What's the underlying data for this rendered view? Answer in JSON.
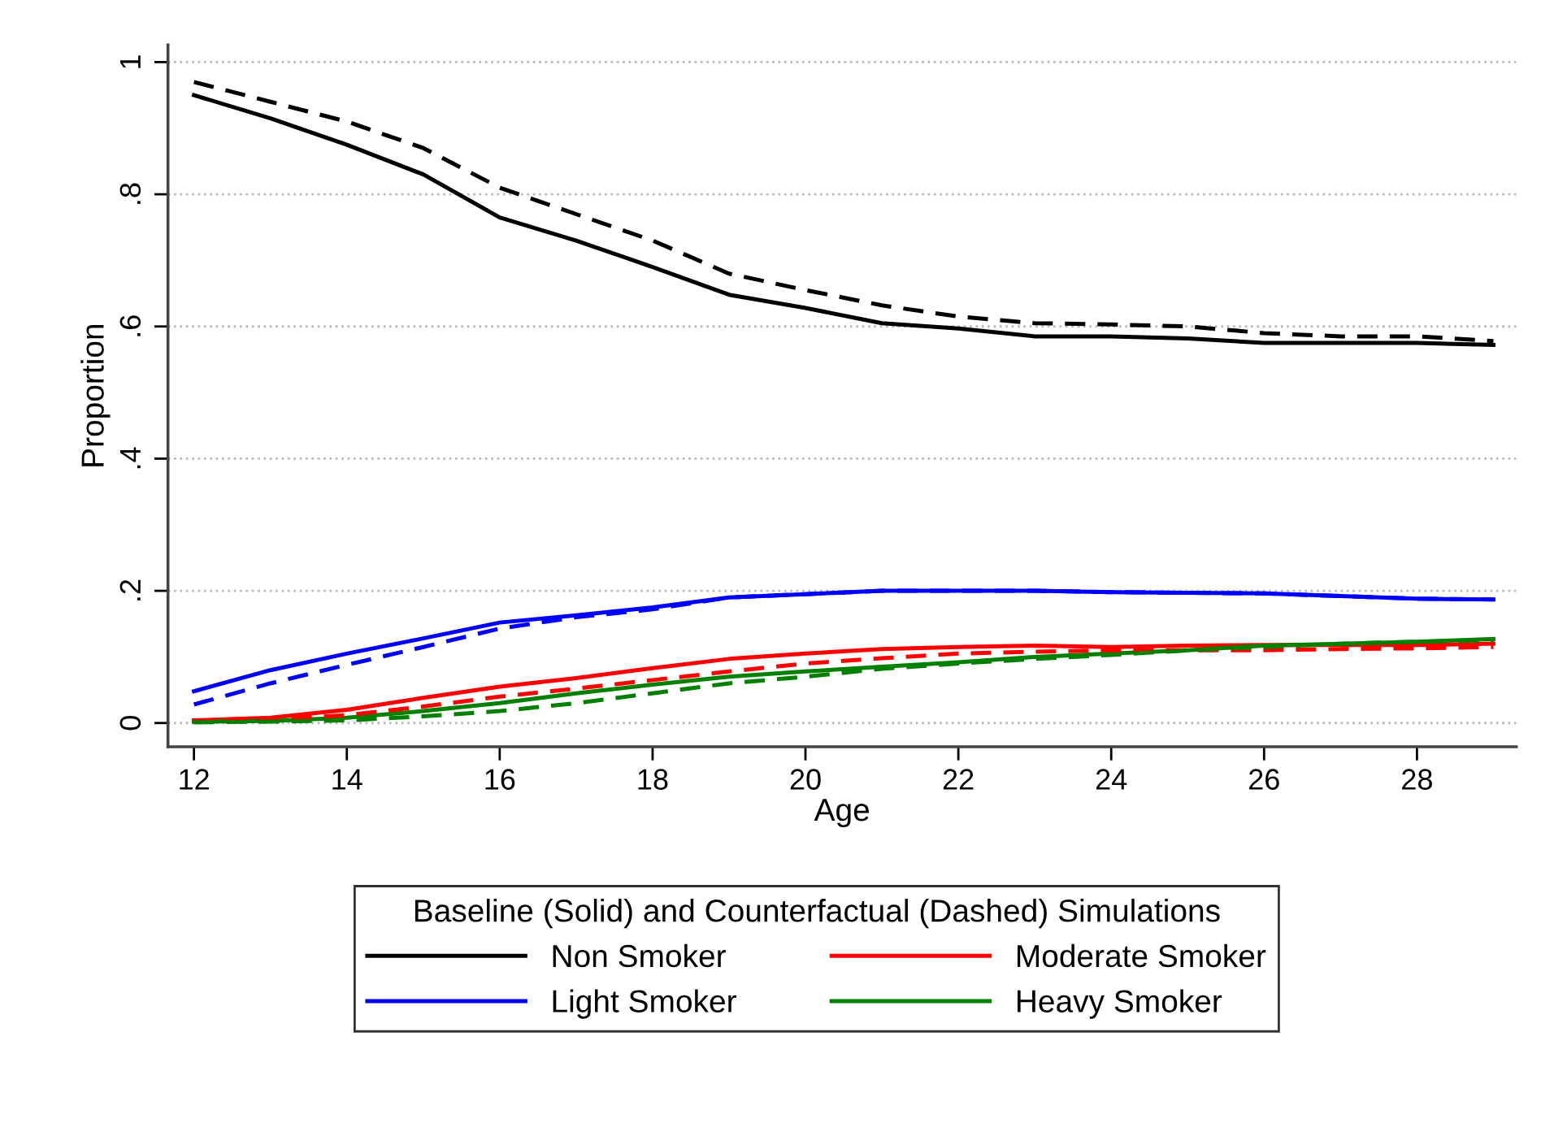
{
  "chart_data": {
    "type": "line",
    "xlabel": "Age",
    "ylabel": "Proportion",
    "legend_title": "Baseline (Solid) and Counterfactual (Dashed) Simulations",
    "x": [
      12,
      13,
      14,
      15,
      16,
      17,
      18,
      19,
      20,
      21,
      22,
      23,
      24,
      25,
      26,
      27,
      28,
      29
    ],
    "series": [
      {
        "name": "Non Smoker",
        "color": "#000000",
        "line_style": "solid",
        "values": [
          0.95,
          0.915,
          0.875,
          0.83,
          0.765,
          0.73,
          0.69,
          0.648,
          0.628,
          0.605,
          0.597,
          0.585,
          0.585,
          0.582,
          0.575,
          0.575,
          0.575,
          0.572
        ]
      },
      {
        "name": "Light Smoker",
        "color": "#0000ff",
        "line_style": "solid",
        "values": [
          0.048,
          0.08,
          0.105,
          0.128,
          0.152,
          0.163,
          0.175,
          0.19,
          0.195,
          0.2,
          0.2,
          0.2,
          0.198,
          0.197,
          0.196,
          0.192,
          0.188,
          0.187
        ]
      },
      {
        "name": "Moderate Smoker",
        "color": "#ff0000",
        "line_style": "solid",
        "values": [
          0.004,
          0.008,
          0.02,
          0.038,
          0.055,
          0.068,
          0.083,
          0.097,
          0.105,
          0.112,
          0.115,
          0.117,
          0.115,
          0.117,
          0.118,
          0.118,
          0.118,
          0.12
        ]
      },
      {
        "name": "Heavy Smoker",
        "color": "#008000",
        "line_style": "solid",
        "values": [
          0.002,
          0.003,
          0.008,
          0.018,
          0.03,
          0.045,
          0.058,
          0.07,
          0.078,
          0.085,
          0.092,
          0.1,
          0.105,
          0.11,
          0.117,
          0.12,
          0.123,
          0.127
        ]
      },
      {
        "color": "#000000",
        "line_style": "dashed",
        "values": [
          0.97,
          0.94,
          0.91,
          0.87,
          0.81,
          0.77,
          0.73,
          0.68,
          0.655,
          0.632,
          0.615,
          0.605,
          0.603,
          0.6,
          0.59,
          0.585,
          0.585,
          0.578
        ]
      },
      {
        "color": "#0000ff",
        "line_style": "dashed",
        "values": [
          0.028,
          0.06,
          0.088,
          0.115,
          0.143,
          0.16,
          0.172,
          0.19,
          0.195,
          0.2,
          0.2,
          0.2,
          0.198,
          0.197,
          0.196,
          0.192,
          0.188,
          0.187
        ]
      },
      {
        "color": "#ff0000",
        "line_style": "dashed",
        "values": [
          0.003,
          0.005,
          0.012,
          0.025,
          0.04,
          0.052,
          0.065,
          0.078,
          0.09,
          0.098,
          0.105,
          0.108,
          0.11,
          0.11,
          0.11,
          0.112,
          0.113,
          0.115
        ]
      },
      {
        "color": "#008000",
        "line_style": "dashed",
        "values": [
          0.001,
          0.002,
          0.004,
          0.01,
          0.018,
          0.03,
          0.045,
          0.06,
          0.07,
          0.082,
          0.09,
          0.097,
          0.103,
          0.11,
          0.115,
          0.12,
          0.123,
          0.125
        ]
      }
    ],
    "xlim": [
      11.66,
      29.3
    ],
    "ylim": [
      -0.036,
      1.026
    ],
    "xticks": [
      12,
      14,
      16,
      18,
      20,
      22,
      24,
      26,
      28
    ],
    "yticks": [
      0,
      {
        "value": 0.2,
        "label": ".2"
      },
      {
        "value": 0.4,
        "label": ".4"
      },
      {
        "value": 0.6,
        "label": ".6"
      },
      {
        "value": 0.8,
        "label": ".8"
      },
      1
    ],
    "grid": "y",
    "legend": "bottom",
    "marker": "none"
  }
}
